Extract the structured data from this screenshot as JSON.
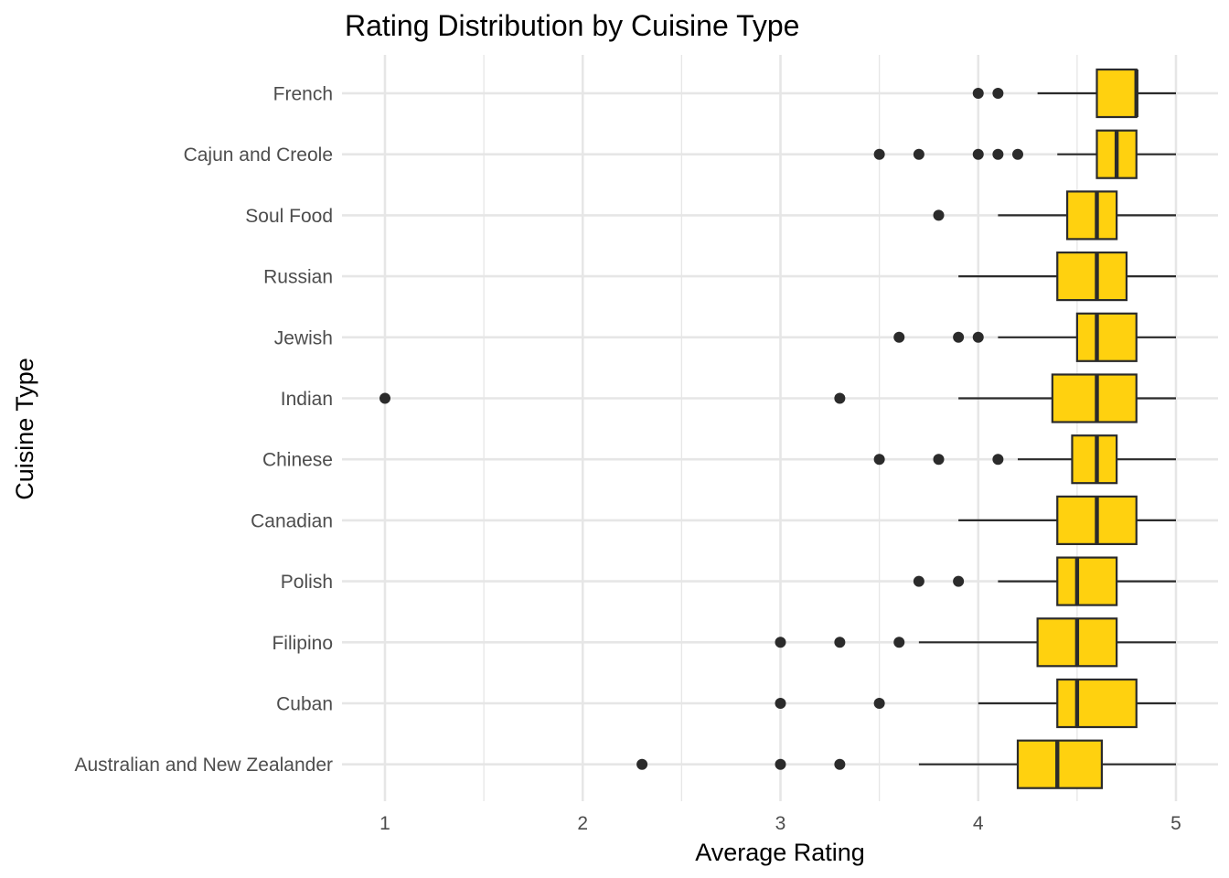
{
  "chart_data": {
    "type": "boxplot",
    "title": "Rating Distribution by Cuisine Type",
    "xlabel": "Average Rating",
    "ylabel": "Cuisine Type",
    "xlim": [
      0.85,
      5.15
    ],
    "x_ticks": [
      1,
      2,
      3,
      4,
      5
    ],
    "x_minor_ticks": [
      1.5,
      2.5,
      3.5,
      4.5
    ],
    "grid": true,
    "colors": {
      "box_fill": "#FFD10F",
      "box_stroke": "#2b2b2b",
      "grid": "#e6e6e6",
      "text": "#4d4d4d"
    },
    "categories": [
      {
        "name": "French",
        "whisker_low": 4.3,
        "q1": 4.6,
        "median": 4.8,
        "q3": 4.8,
        "whisker_high": 5.0,
        "outliers": [
          4.0,
          4.1
        ]
      },
      {
        "name": "Cajun and Creole",
        "whisker_low": 4.4,
        "q1": 4.6,
        "median": 4.7,
        "q3": 4.8,
        "whisker_high": 5.0,
        "outliers": [
          3.5,
          3.7,
          4.0,
          4.1,
          4.2
        ]
      },
      {
        "name": "Soul Food",
        "whisker_low": 4.1,
        "q1": 4.45,
        "median": 4.6,
        "q3": 4.7,
        "whisker_high": 5.0,
        "outliers": [
          3.8
        ]
      },
      {
        "name": "Russian",
        "whisker_low": 3.9,
        "q1": 4.4,
        "median": 4.6,
        "q3": 4.75,
        "whisker_high": 5.0,
        "outliers": []
      },
      {
        "name": "Jewish",
        "whisker_low": 4.1,
        "q1": 4.5,
        "median": 4.6,
        "q3": 4.8,
        "whisker_high": 5.0,
        "outliers": [
          3.6,
          3.9,
          4.0
        ]
      },
      {
        "name": "Indian",
        "whisker_low": 3.9,
        "q1": 4.375,
        "median": 4.6,
        "q3": 4.8,
        "whisker_high": 5.0,
        "outliers": [
          1.0,
          3.3
        ]
      },
      {
        "name": "Chinese",
        "whisker_low": 4.2,
        "q1": 4.475,
        "median": 4.6,
        "q3": 4.7,
        "whisker_high": 5.0,
        "outliers": [
          3.5,
          3.8,
          4.1
        ]
      },
      {
        "name": "Canadian",
        "whisker_low": 3.9,
        "q1": 4.4,
        "median": 4.6,
        "q3": 4.8,
        "whisker_high": 5.0,
        "outliers": []
      },
      {
        "name": "Polish",
        "whisker_low": 4.1,
        "q1": 4.4,
        "median": 4.5,
        "q3": 4.7,
        "whisker_high": 5.0,
        "outliers": [
          3.7,
          3.9
        ]
      },
      {
        "name": "Filipino",
        "whisker_low": 3.7,
        "q1": 4.3,
        "median": 4.5,
        "q3": 4.7,
        "whisker_high": 5.0,
        "outliers": [
          3.0,
          3.3,
          3.6
        ]
      },
      {
        "name": "Cuban",
        "whisker_low": 4.0,
        "q1": 4.4,
        "median": 4.5,
        "q3": 4.8,
        "whisker_high": 5.0,
        "outliers": [
          3.0,
          3.5
        ]
      },
      {
        "name": "Australian and New Zealander",
        "whisker_low": 3.7,
        "q1": 4.2,
        "median": 4.4,
        "q3": 4.625,
        "whisker_high": 5.0,
        "outliers": [
          2.3,
          3.0,
          3.3
        ]
      }
    ]
  }
}
